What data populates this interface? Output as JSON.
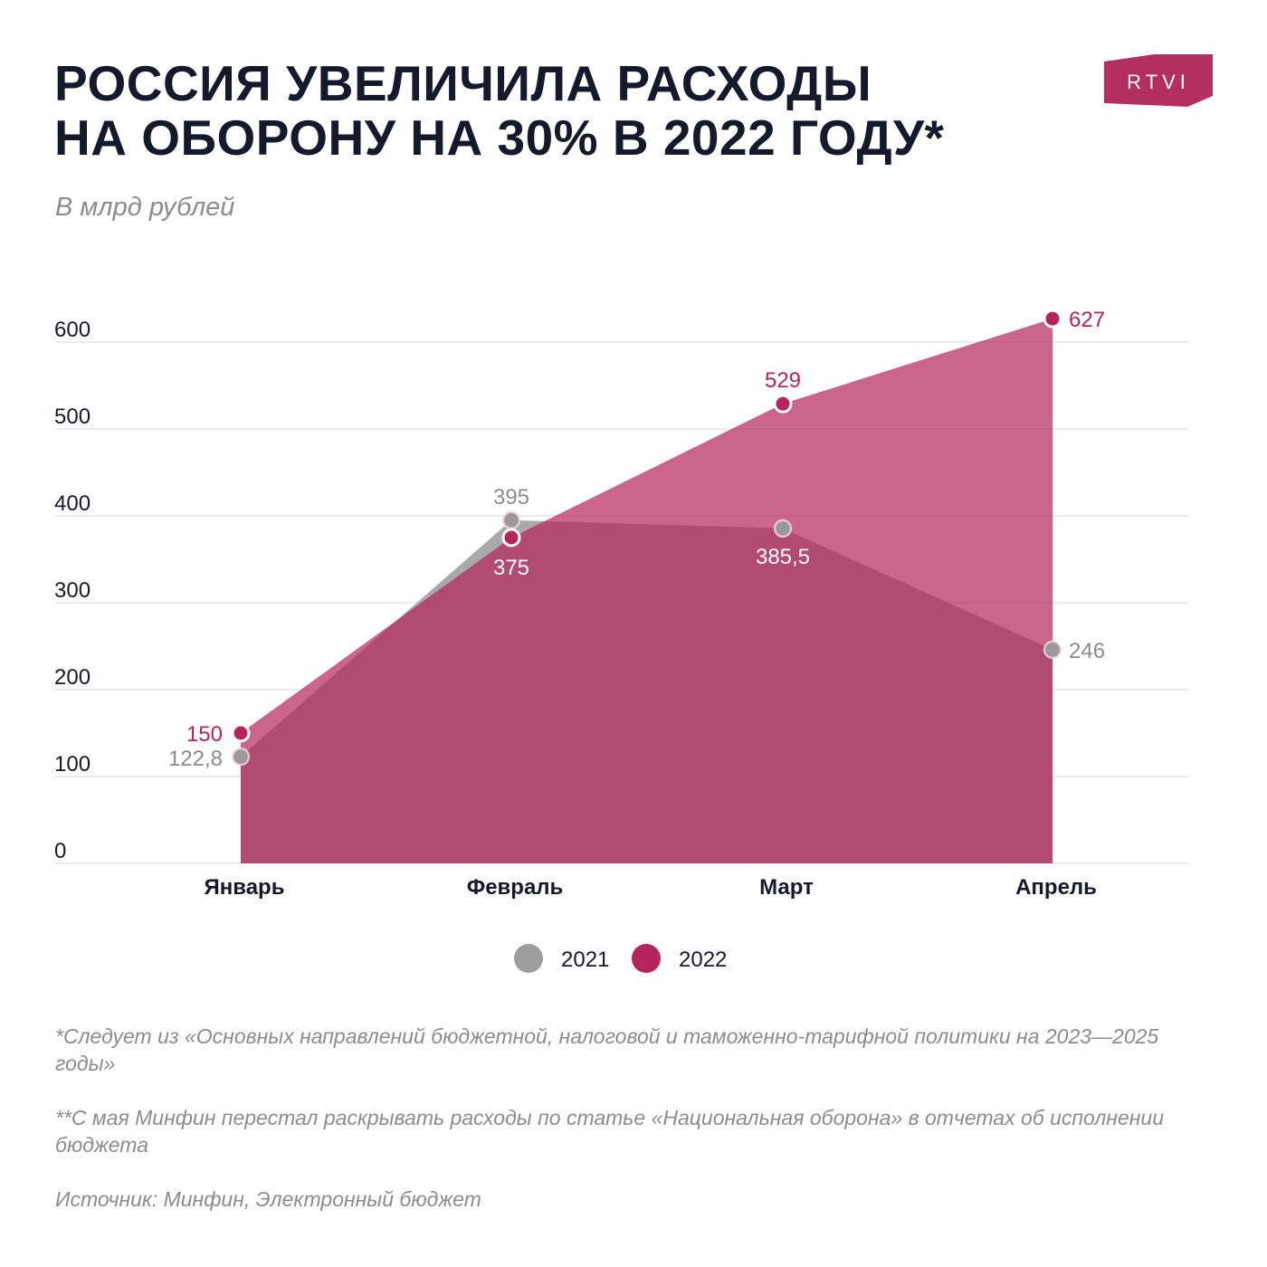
{
  "title_lines": [
    "РОССИЯ УВЕЛИЧИЛА РАСХОДЫ",
    "НА ОБОРОНУ НА 30% В 2022 ГОДУ*"
  ],
  "subtitle": "В млрд рублей",
  "logo_text": "RTVI",
  "colors": {
    "brand": "#b22f5e",
    "series_2021": "#a9a9a9",
    "series_2022": "#b5245a",
    "text_dark": "#141a2b",
    "text_muted": "#8c8c8c"
  },
  "chart_data": {
    "type": "area",
    "categories": [
      "Январь",
      "Февраль",
      "Март",
      "Апрель"
    ],
    "series": [
      {
        "name": "2021",
        "values": [
          122.8,
          395,
          385.5,
          246
        ],
        "labels": [
          "122,8",
          "395",
          "385,5",
          "246"
        ]
      },
      {
        "name": "2022",
        "values": [
          150,
          375,
          529,
          627
        ],
        "labels": [
          "150",
          "375",
          "529",
          "627"
        ]
      }
    ],
    "yticks": [
      0,
      100,
      200,
      300,
      400,
      500,
      600
    ],
    "ylim": [
      0,
      600
    ],
    "grid": true,
    "legend_placement": "bottom-center"
  },
  "notes": [
    "*Следует из «Основных направлений бюджетной, налоговой и таможенно-тарифной политики на 2023—2025 годы»",
    "**С мая Минфин перестал раскрывать расходы по статье «Национальная оборона» в отчетах об исполнении бюджета",
    "Источник: Минфин, Электронный бюджет"
  ]
}
